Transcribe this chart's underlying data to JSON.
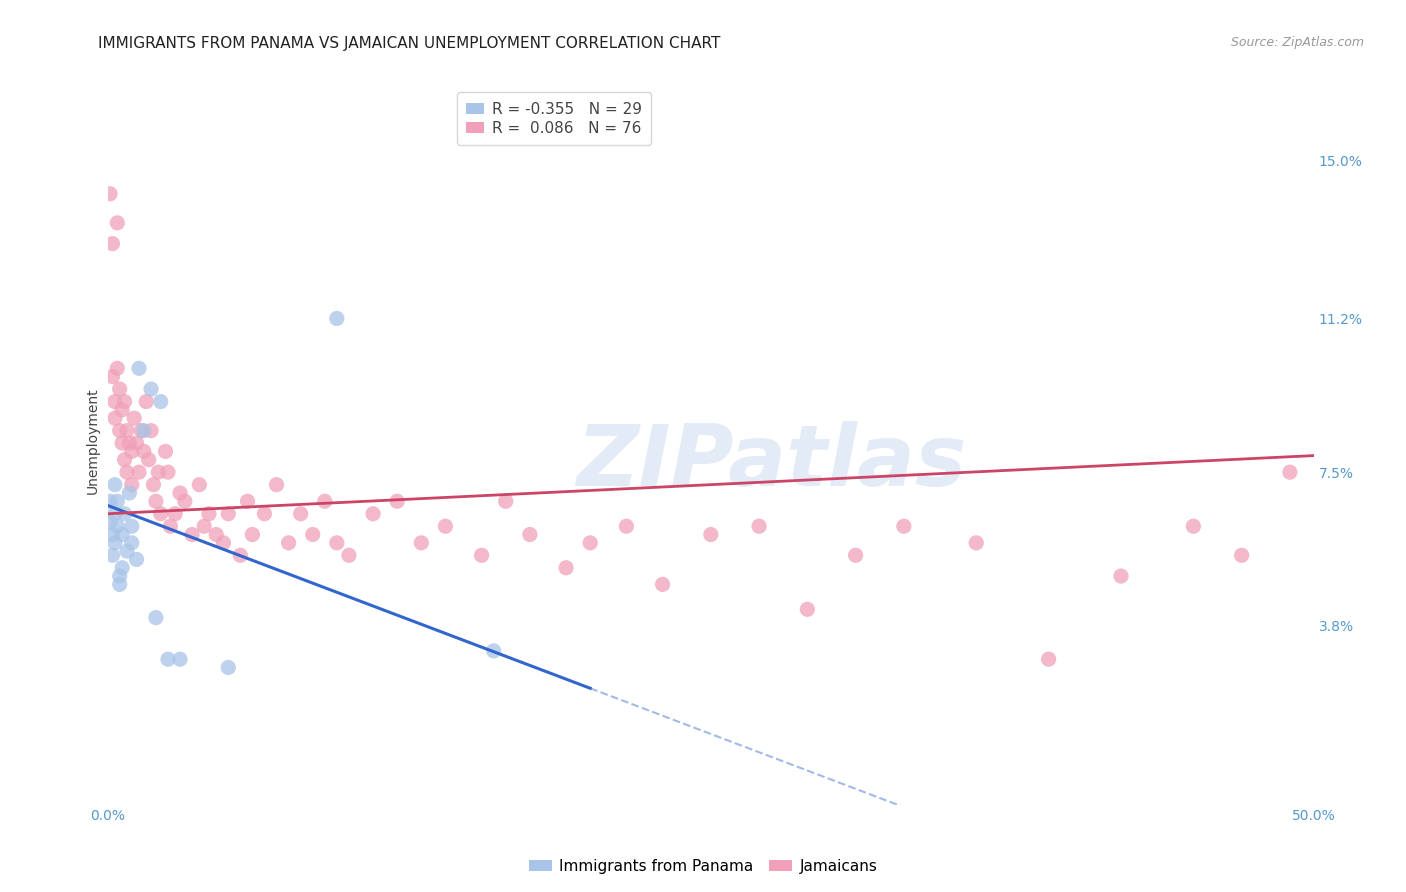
{
  "title": "IMMIGRANTS FROM PANAMA VS JAMAICAN UNEMPLOYMENT CORRELATION CHART",
  "source": "Source: ZipAtlas.com",
  "ylabel": "Unemployment",
  "xlim": [
    0.0,
    0.5
  ],
  "ylim": [
    -0.005,
    0.17
  ],
  "yticks": [
    0.038,
    0.075,
    0.112,
    0.15
  ],
  "yticklabels": [
    "3.8%",
    "7.5%",
    "11.2%",
    "15.0%"
  ],
  "xtick_positions": [
    0.0,
    0.5
  ],
  "xtick_labels": [
    "0.0%",
    "50.0%"
  ],
  "legend_label1": "R = -0.355   N = 29",
  "legend_label2": "R =  0.086   N = 76",
  "legend_name1": "Immigrants from Panama",
  "legend_name2": "Jamaicans",
  "blue_scatter_x": [
    0.001,
    0.001,
    0.002,
    0.002,
    0.003,
    0.003,
    0.003,
    0.004,
    0.004,
    0.005,
    0.005,
    0.006,
    0.006,
    0.007,
    0.008,
    0.009,
    0.01,
    0.01,
    0.012,
    0.013,
    0.015,
    0.018,
    0.02,
    0.022,
    0.025,
    0.03,
    0.05,
    0.095,
    0.16
  ],
  "blue_scatter_y": [
    0.068,
    0.063,
    0.06,
    0.055,
    0.065,
    0.058,
    0.072,
    0.062,
    0.068,
    0.05,
    0.048,
    0.052,
    0.06,
    0.065,
    0.056,
    0.07,
    0.058,
    0.062,
    0.054,
    0.1,
    0.085,
    0.095,
    0.04,
    0.092,
    0.03,
    0.03,
    0.028,
    0.112,
    0.032
  ],
  "pink_scatter_x": [
    0.001,
    0.002,
    0.002,
    0.003,
    0.003,
    0.004,
    0.004,
    0.005,
    0.005,
    0.006,
    0.006,
    0.007,
    0.007,
    0.008,
    0.008,
    0.009,
    0.01,
    0.01,
    0.011,
    0.012,
    0.013,
    0.014,
    0.015,
    0.016,
    0.017,
    0.018,
    0.019,
    0.02,
    0.021,
    0.022,
    0.024,
    0.025,
    0.026,
    0.028,
    0.03,
    0.032,
    0.035,
    0.038,
    0.04,
    0.042,
    0.045,
    0.048,
    0.05,
    0.055,
    0.058,
    0.06,
    0.065,
    0.07,
    0.075,
    0.08,
    0.085,
    0.09,
    0.095,
    0.1,
    0.11,
    0.12,
    0.13,
    0.14,
    0.155,
    0.165,
    0.175,
    0.19,
    0.2,
    0.215,
    0.23,
    0.25,
    0.27,
    0.29,
    0.31,
    0.33,
    0.36,
    0.39,
    0.42,
    0.45,
    0.47,
    0.49
  ],
  "pink_scatter_y": [
    0.142,
    0.13,
    0.098,
    0.092,
    0.088,
    0.135,
    0.1,
    0.095,
    0.085,
    0.082,
    0.09,
    0.078,
    0.092,
    0.085,
    0.075,
    0.082,
    0.08,
    0.072,
    0.088,
    0.082,
    0.075,
    0.085,
    0.08,
    0.092,
    0.078,
    0.085,
    0.072,
    0.068,
    0.075,
    0.065,
    0.08,
    0.075,
    0.062,
    0.065,
    0.07,
    0.068,
    0.06,
    0.072,
    0.062,
    0.065,
    0.06,
    0.058,
    0.065,
    0.055,
    0.068,
    0.06,
    0.065,
    0.072,
    0.058,
    0.065,
    0.06,
    0.068,
    0.058,
    0.055,
    0.065,
    0.068,
    0.058,
    0.062,
    0.055,
    0.068,
    0.06,
    0.052,
    0.058,
    0.062,
    0.048,
    0.06,
    0.062,
    0.042,
    0.055,
    0.062,
    0.058,
    0.03,
    0.05,
    0.062,
    0.055,
    0.075
  ],
  "blue_line_x0": 0.0,
  "blue_line_y0": 0.067,
  "blue_line_slope": -0.22,
  "blue_line_solid_end": 0.2,
  "blue_line_dash_end": 0.33,
  "pink_line_x0": 0.0,
  "pink_line_y0": 0.065,
  "pink_line_slope": 0.028,
  "pink_line_x1": 0.5,
  "blue_scatter_color": "#a8c4e8",
  "pink_scatter_color": "#f0a0b8",
  "blue_line_color": "#3366cc",
  "pink_line_color": "#cc4466",
  "watermark_text": "ZIPatlas",
  "watermark_color": "#c8d8ee",
  "background_color": "#ffffff",
  "grid_color": "#dddddd",
  "axis_color": "#5599cc",
  "title_fontsize": 11,
  "scatter_size": 120,
  "scatter_alpha": 0.75
}
